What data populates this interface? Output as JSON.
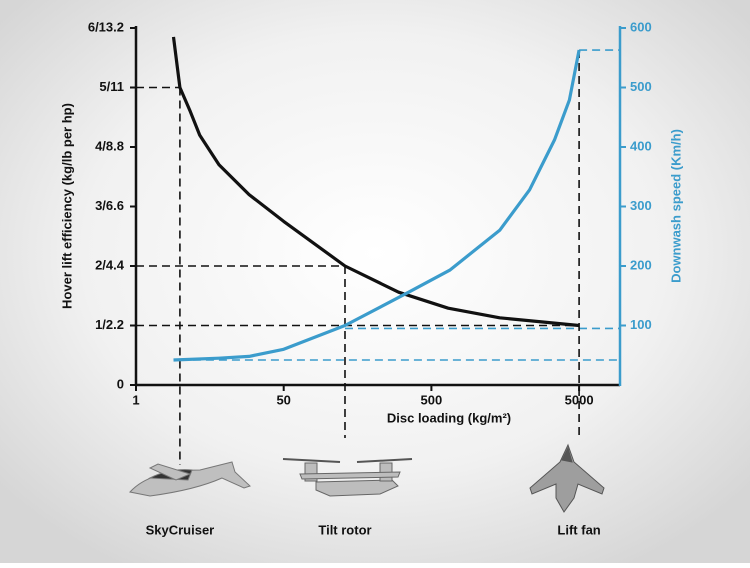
{
  "chart_data": {
    "type": "line",
    "x_label": "Disc loading (kg/m²)",
    "y_label": "Hover lift efficiency (kg/lb per hp)",
    "y2_label": "Downwash speed (Km/h)",
    "xscale": "log",
    "xlim": [
      1,
      9000
    ],
    "xticks": [
      1,
      50,
      500,
      5000
    ],
    "ylim": [
      0,
      6
    ],
    "yticks": [
      0,
      {
        "value": 1,
        "label": "1/2.2"
      },
      {
        "value": 2,
        "label": "2/4.4"
      },
      {
        "value": 3,
        "label": "3/6.6"
      },
      {
        "value": 4,
        "label": "4/8.8"
      },
      {
        "value": 5,
        "label": "5/11"
      },
      {
        "value": 6,
        "label": "6/13.2"
      }
    ],
    "y2lim": [
      0,
      600
    ],
    "y2ticks": [
      100,
      200,
      300,
      400,
      500,
      600
    ],
    "series": [
      {
        "name": "Hover lift efficiency",
        "color": "#111111",
        "x": [
          2.7,
          3.2,
          4.2,
          5.4,
          9,
          20,
          50,
          130,
          300,
          650,
          1450,
          5000
        ],
        "values": [
          5.85,
          5,
          4.6,
          4.2,
          3.7,
          3.2,
          2.75,
          2,
          1.56,
          1.29,
          1.13,
          1
        ]
      },
      {
        "name": "Downwash speed",
        "color": "#3b9ccc",
        "axis": "y2",
        "x": [
          2.7,
          9,
          20,
          50,
          130,
          357,
          665,
          1450,
          2310,
          3410,
          4300,
          5000
        ],
        "values": [
          42,
          45,
          48,
          60,
          100,
          157,
          193,
          260,
          328,
          412,
          479,
          563
        ]
      }
    ],
    "aircraft": [
      {
        "name": "SkyCruiser",
        "x": 3.2,
        "y": 5,
        "y2": 42
      },
      {
        "name": "Tilt rotor",
        "x": 130,
        "y": 2,
        "y2": 95
      },
      {
        "name": "Lift fan",
        "x": 5000,
        "y": 1,
        "y2": 563
      }
    ]
  }
}
